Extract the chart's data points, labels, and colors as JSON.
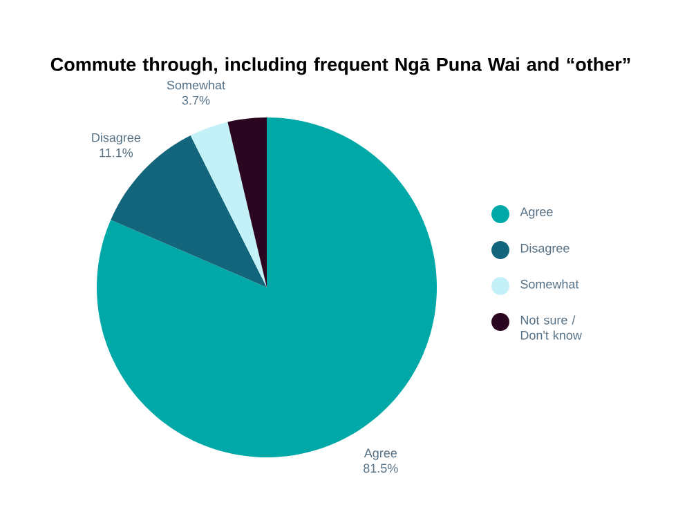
{
  "chart_data": {
    "type": "pie",
    "title": "Commute through,  including frequent Ngā Puna Wai and “other”",
    "categories": [
      "Agree",
      "Disagree",
      "Somewhat",
      "Not sure / Don't know"
    ],
    "values": [
      81.5,
      11.1,
      3.7,
      3.7
    ],
    "value_labels": [
      "81.5%",
      "11.1%",
      "3.7%",
      null
    ],
    "colors": [
      "#00a8a8",
      "#12657a",
      "#c4f1f8",
      "#2b0620"
    ],
    "legend": "right"
  }
}
